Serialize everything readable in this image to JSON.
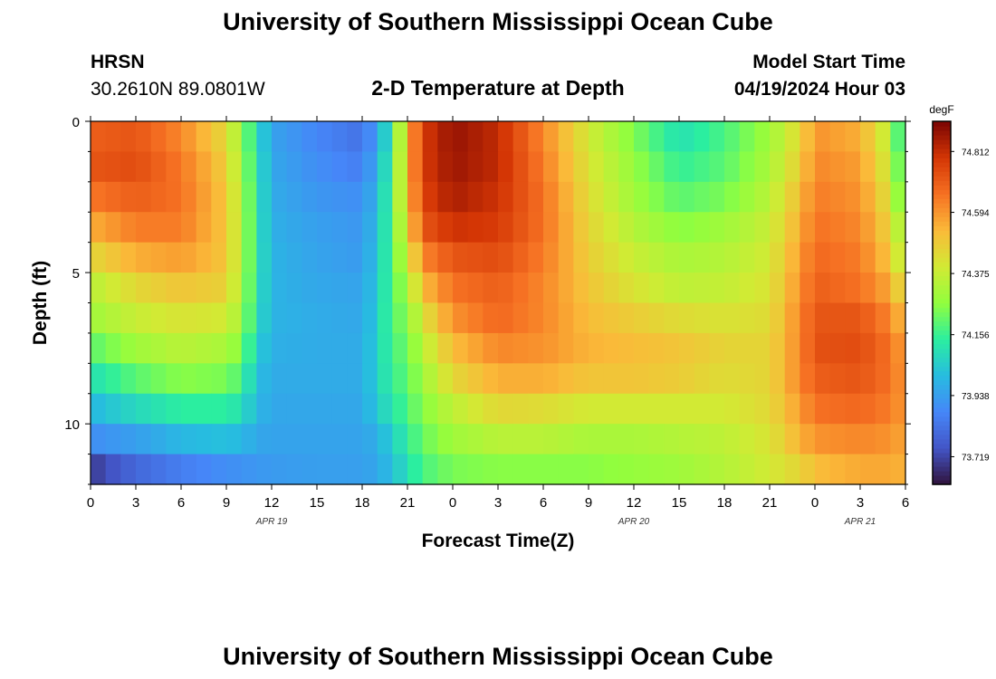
{
  "page": {
    "title_top": "University of Southern Mississippi Ocean Cube",
    "title_bottom": "University of Southern Mississippi Ocean Cube",
    "station": "HRSN",
    "location": "30.2610N  89.0801W",
    "plot_title": "2-D Temperature at Depth",
    "model_start_label": "Model Start Time",
    "model_start_value": "04/19/2024 Hour 03"
  },
  "chart_data": {
    "type": "heatmap",
    "title": "2-D Temperature at Depth",
    "xlabel": "Forecast Time(Z)",
    "ylabel": "Depth (ft)",
    "x_tick_labels": [
      "0",
      "3",
      "6",
      "9",
      "12",
      "15",
      "18",
      "21",
      "0",
      "3",
      "6",
      "9",
      "12",
      "15",
      "18",
      "21",
      "0",
      "3",
      "6"
    ],
    "x_hours": [
      0,
      3,
      6,
      9,
      12,
      15,
      18,
      21,
      24,
      27,
      30,
      33,
      36,
      39,
      42,
      45,
      48,
      51,
      54
    ],
    "date_labels": [
      {
        "label": "APR 19",
        "hour": 12
      },
      {
        "label": "APR 20",
        "hour": 36
      },
      {
        "label": "APR 21",
        "hour": 51
      }
    ],
    "y_tick_labels": [
      "0",
      "5",
      "10"
    ],
    "y_ticks": [
      0,
      5,
      10
    ],
    "xlim": [
      0,
      54
    ],
    "ylim": [
      0,
      12
    ],
    "colorbar": {
      "unit": "degF",
      "tick_labels": [
        "74.812",
        "74.594",
        "74.375",
        "74.156",
        "73.938",
        "73.719"
      ],
      "ticks": [
        74.812,
        74.594,
        74.375,
        74.156,
        73.938,
        73.719
      ],
      "range": [
        73.62,
        74.92
      ]
    },
    "layer_depths_ft": [
      0.5,
      1.5,
      2.5,
      3.5,
      4.5,
      5.5,
      6.5,
      7.5,
      8.5,
      9.5,
      10.5,
      11.5
    ],
    "keyframe_hours": [
      0,
      3,
      6,
      9,
      10,
      11,
      12,
      15,
      18,
      19,
      20,
      21,
      22,
      24,
      27,
      30,
      33,
      36,
      39,
      42,
      45,
      47,
      48,
      51,
      53,
      54
    ],
    "keyframe_temps_degF": [
      [
        74.7,
        74.72,
        74.62,
        74.45,
        74.28,
        74.1,
        73.95,
        73.88,
        73.83,
        73.95,
        74.15,
        74.52,
        74.78,
        74.88,
        74.82,
        74.62,
        74.4,
        74.25,
        74.1,
        74.18,
        74.3,
        74.45,
        74.6,
        74.55,
        74.35,
        74.05
      ],
      [
        74.72,
        74.74,
        74.65,
        74.48,
        74.3,
        74.12,
        73.96,
        73.9,
        73.86,
        73.98,
        74.18,
        74.52,
        74.78,
        74.87,
        74.82,
        74.64,
        74.42,
        74.28,
        74.15,
        74.2,
        74.32,
        74.48,
        74.62,
        74.58,
        74.38,
        74.1
      ],
      [
        74.65,
        74.7,
        74.66,
        74.5,
        74.32,
        74.13,
        73.97,
        73.92,
        73.9,
        74.0,
        74.2,
        74.5,
        74.76,
        74.85,
        74.8,
        74.66,
        74.44,
        74.3,
        74.2,
        74.24,
        74.35,
        74.52,
        74.64,
        74.6,
        74.42,
        74.15
      ],
      [
        74.55,
        74.64,
        74.64,
        74.5,
        74.33,
        74.13,
        73.98,
        73.94,
        73.92,
        74.02,
        74.2,
        74.45,
        74.72,
        74.8,
        74.78,
        74.66,
        74.46,
        74.34,
        74.26,
        74.3,
        74.38,
        74.55,
        74.66,
        74.62,
        74.46,
        74.25
      ],
      [
        74.45,
        74.55,
        74.58,
        74.5,
        74.33,
        74.13,
        73.99,
        73.95,
        73.93,
        74.03,
        74.2,
        74.38,
        74.62,
        74.72,
        74.74,
        74.64,
        74.48,
        74.38,
        74.32,
        74.34,
        74.4,
        74.58,
        74.68,
        74.64,
        74.5,
        74.3
      ],
      [
        74.35,
        74.45,
        74.5,
        74.47,
        74.32,
        74.12,
        73.99,
        73.96,
        73.95,
        74.04,
        74.2,
        74.3,
        74.52,
        74.66,
        74.7,
        74.62,
        74.5,
        74.42,
        74.36,
        74.37,
        74.42,
        74.6,
        74.7,
        74.66,
        74.56,
        74.4
      ],
      [
        74.3,
        74.38,
        74.42,
        74.4,
        74.3,
        74.1,
        73.99,
        73.97,
        73.96,
        74.05,
        74.2,
        74.25,
        74.42,
        74.6,
        74.68,
        74.62,
        74.52,
        74.48,
        74.44,
        74.42,
        74.44,
        74.62,
        74.72,
        74.72,
        74.62,
        74.5
      ],
      [
        74.2,
        74.3,
        74.35,
        74.32,
        74.25,
        74.06,
        73.98,
        73.97,
        73.97,
        74.06,
        74.18,
        74.22,
        74.35,
        74.52,
        74.62,
        74.6,
        74.54,
        74.52,
        74.5,
        74.46,
        74.46,
        74.62,
        74.73,
        74.74,
        74.66,
        74.56
      ],
      [
        74.1,
        74.2,
        74.26,
        74.24,
        74.18,
        74.02,
        73.97,
        73.97,
        73.97,
        74.06,
        74.16,
        74.2,
        74.3,
        74.45,
        74.55,
        74.55,
        74.5,
        74.5,
        74.48,
        74.44,
        74.46,
        74.62,
        74.7,
        74.72,
        74.66,
        74.58
      ],
      [
        74.0,
        74.08,
        74.14,
        74.14,
        74.1,
        74.0,
        73.96,
        73.96,
        73.96,
        74.04,
        74.12,
        74.18,
        74.26,
        74.36,
        74.45,
        74.44,
        74.4,
        74.4,
        74.4,
        74.4,
        74.45,
        74.58,
        74.66,
        74.68,
        74.64,
        74.58
      ],
      [
        73.9,
        73.94,
        74.0,
        74.02,
        74.0,
        73.96,
        73.95,
        73.95,
        73.95,
        73.98,
        74.06,
        74.14,
        74.22,
        74.3,
        74.35,
        74.35,
        74.32,
        74.32,
        74.34,
        74.36,
        74.42,
        74.54,
        74.6,
        74.62,
        74.6,
        74.56
      ],
      [
        73.7,
        73.8,
        73.86,
        73.9,
        73.91,
        73.92,
        73.93,
        73.94,
        73.94,
        73.96,
        74.02,
        74.1,
        74.18,
        74.24,
        74.26,
        74.26,
        74.26,
        74.28,
        74.3,
        74.34,
        74.4,
        74.46,
        74.52,
        74.56,
        74.56,
        74.54
      ]
    ]
  }
}
